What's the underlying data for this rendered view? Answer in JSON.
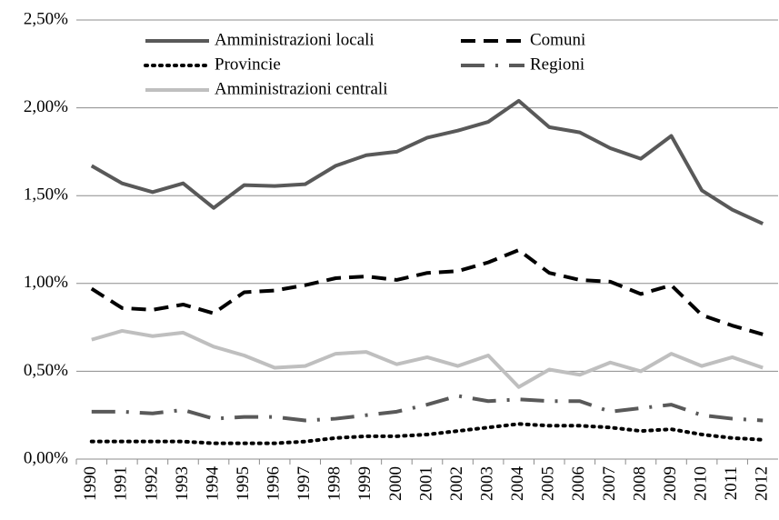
{
  "chart_data": {
    "type": "line",
    "categories": [
      "1990",
      "1991",
      "1992",
      "1993",
      "1994",
      "1995",
      "1996",
      "1997",
      "1998",
      "1999",
      "2000",
      "2001",
      "2002",
      "2003",
      "2004",
      "2005",
      "2006",
      "2007",
      "2008",
      "2009",
      "2010",
      "2011",
      "2012"
    ],
    "series": [
      {
        "name": "Amministrazioni locali",
        "color": "#595959",
        "style": "solid",
        "values": [
          1.67,
          1.57,
          1.52,
          1.57,
          1.43,
          1.56,
          1.555,
          1.565,
          1.67,
          1.73,
          1.75,
          1.83,
          1.87,
          1.92,
          2.04,
          1.89,
          1.86,
          1.77,
          1.71,
          1.84,
          1.53,
          1.42,
          1.34
        ]
      },
      {
        "name": "Comuni",
        "color": "#000000",
        "style": "dash",
        "values": [
          0.97,
          0.86,
          0.85,
          0.88,
          0.83,
          0.95,
          0.96,
          0.99,
          1.03,
          1.04,
          1.02,
          1.06,
          1.07,
          1.12,
          1.19,
          1.06,
          1.02,
          1.01,
          0.94,
          0.99,
          0.82,
          0.76,
          0.71
        ]
      },
      {
        "name": "Provincie",
        "color": "#000000",
        "style": "dot",
        "values": [
          0.1,
          0.1,
          0.1,
          0.1,
          0.09,
          0.09,
          0.09,
          0.1,
          0.12,
          0.13,
          0.13,
          0.14,
          0.16,
          0.18,
          0.2,
          0.19,
          0.19,
          0.18,
          0.16,
          0.17,
          0.14,
          0.12,
          0.11
        ]
      },
      {
        "name": "Regioni",
        "color": "#595959",
        "style": "dashdot",
        "values": [
          0.27,
          0.27,
          0.26,
          0.28,
          0.23,
          0.24,
          0.24,
          0.22,
          0.23,
          0.25,
          0.27,
          0.31,
          0.36,
          0.33,
          0.34,
          0.33,
          0.33,
          0.27,
          0.29,
          0.31,
          0.25,
          0.23,
          0.22
        ]
      },
      {
        "name": "Amministrazioni centrali",
        "color": "#bfbfbf",
        "style": "solid",
        "values": [
          0.68,
          0.73,
          0.7,
          0.72,
          0.64,
          0.59,
          0.52,
          0.53,
          0.6,
          0.61,
          0.54,
          0.58,
          0.53,
          0.59,
          0.41,
          0.51,
          0.48,
          0.55,
          0.5,
          0.6,
          0.53,
          0.58,
          0.52
        ]
      }
    ],
    "ylim": [
      0,
      2.5
    ],
    "yticks": [
      {
        "value": 0,
        "label": "0,00%"
      },
      {
        "value": 0.5,
        "label": "0,50%"
      },
      {
        "value": 1,
        "label": "1,00%"
      },
      {
        "value": 1.5,
        "label": "1,50%"
      },
      {
        "value": 2,
        "label": "2,00%"
      },
      {
        "value": 2.5,
        "label": "2,50%"
      }
    ],
    "grid": true,
    "legend": "top"
  }
}
